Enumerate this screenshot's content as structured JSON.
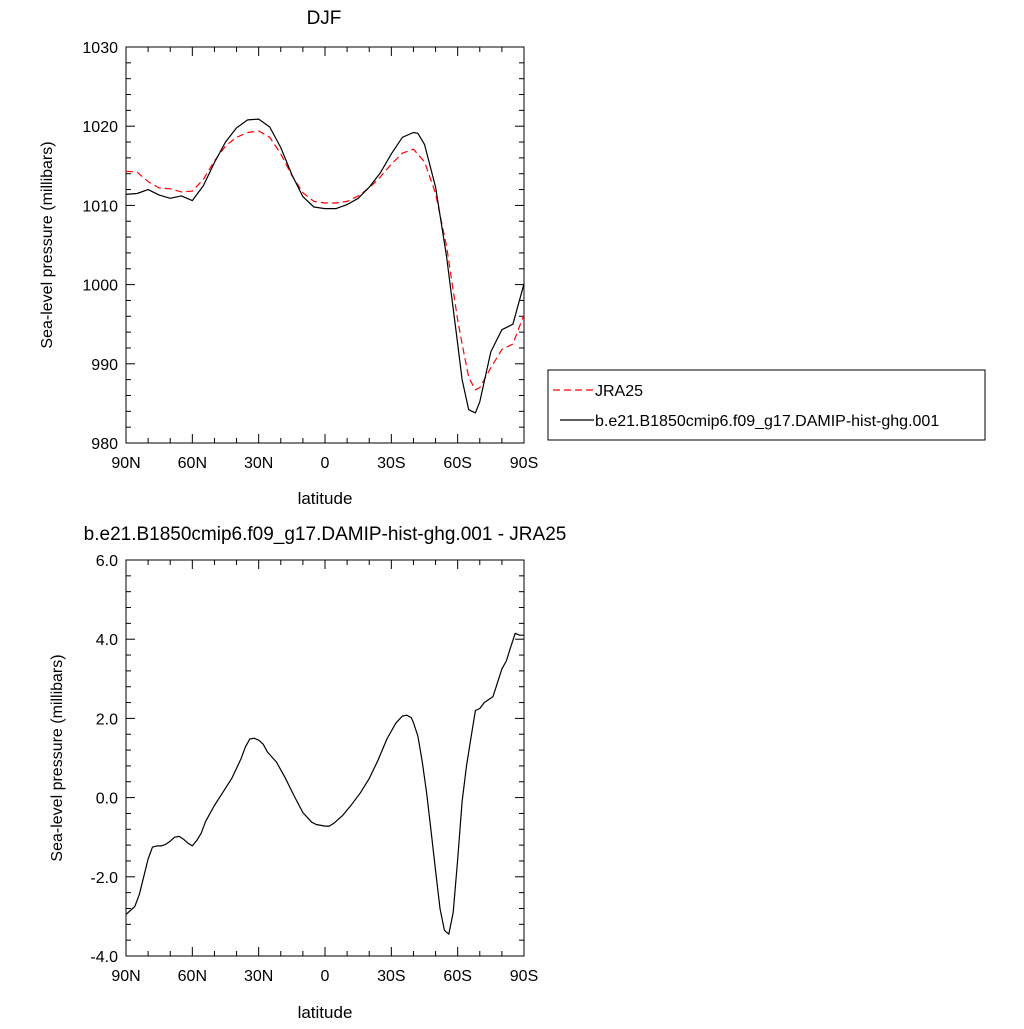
{
  "chart_data": [
    {
      "type": "line",
      "title": "DJF",
      "xlabel": "latitude",
      "ylabel": "Sea-level pressure (millibars)",
      "xlim": [
        90,
        -90
      ],
      "ylim": [
        980,
        1030
      ],
      "xticks": [
        {
          "value": 90,
          "label": "90N"
        },
        {
          "value": 60,
          "label": "60N"
        },
        {
          "value": 30,
          "label": "30N"
        },
        {
          "value": 0,
          "label": "0"
        },
        {
          "value": -30,
          "label": "30S"
        },
        {
          "value": -60,
          "label": "60S"
        },
        {
          "value": -90,
          "label": "90S"
        }
      ],
      "yticks": [
        {
          "value": 980,
          "label": "980"
        },
        {
          "value": 990,
          "label": "990"
        },
        {
          "value": 1000,
          "label": "1000"
        },
        {
          "value": 1010,
          "label": "1010"
        },
        {
          "value": 1020,
          "label": "1020"
        },
        {
          "value": 1030,
          "label": "1030"
        }
      ],
      "legend_position": "right",
      "series": [
        {
          "name": "JRA25",
          "color": "#ff0000",
          "dash": "dashed",
          "x": [
            90,
            85,
            80,
            75,
            70,
            65,
            60,
            55,
            50,
            45,
            40,
            35,
            30,
            25,
            20,
            15,
            10,
            5,
            0,
            -5,
            -10,
            -15,
            -20,
            -25,
            -30,
            -35,
            -40,
            -45,
            -50,
            -55,
            -60,
            -62,
            -65,
            -68,
            -70,
            -75,
            -80,
            -85,
            -90
          ],
          "y": [
            1014.3,
            1014.2,
            1013,
            1012.2,
            1012.1,
            1011.7,
            1011.8,
            1013.3,
            1015.6,
            1017.5,
            1018.6,
            1019.2,
            1019.4,
            1018.6,
            1016.5,
            1013.8,
            1011.6,
            1010.5,
            1010.3,
            1010.3,
            1010.5,
            1011.2,
            1012.2,
            1013.6,
            1015.2,
            1016.6,
            1017.1,
            1015.5,
            1011.5,
            1004.8,
            995.5,
            992.5,
            988.3,
            986.7,
            987,
            989.5,
            991.8,
            992.5,
            996.2
          ]
        },
        {
          "name": "b.e21.B1850cmip6.f09_g17.DAMIP-hist-ghg.001",
          "color": "#000000",
          "dash": "solid",
          "x": [
            90,
            85,
            80,
            75,
            70,
            65,
            60,
            55,
            50,
            45,
            40,
            35,
            30,
            25,
            20,
            15,
            10,
            5,
            0,
            -5,
            -10,
            -15,
            -20,
            -25,
            -30,
            -35,
            -40,
            -42,
            -45,
            -50,
            -55,
            -60,
            -62,
            -65,
            -68,
            -70,
            -75,
            -80,
            -85,
            -90
          ],
          "y": [
            1011.4,
            1011.5,
            1012,
            1011.3,
            1010.9,
            1011.2,
            1010.6,
            1012.5,
            1015.4,
            1018,
            1019.8,
            1020.8,
            1020.9,
            1019.9,
            1017.3,
            1013.9,
            1011.1,
            1009.8,
            1009.6,
            1009.6,
            1010.1,
            1010.9,
            1012.3,
            1014.1,
            1016.5,
            1018.6,
            1019.2,
            1019.1,
            1017.7,
            1012.3,
            1003.5,
            992.5,
            988,
            984.2,
            983.8,
            985.2,
            991.5,
            994.3,
            995,
            1000.1
          ]
        }
      ]
    },
    {
      "type": "line",
      "title": "b.e21.B1850cmip6.f09_g17.DAMIP-hist-ghg.001 - JRA25",
      "xlabel": "latitude",
      "ylabel": "Sea-level pressure (millibars)",
      "xlim": [
        90,
        -90
      ],
      "ylim": [
        -4,
        6
      ],
      "xticks": [
        {
          "value": 90,
          "label": "90N"
        },
        {
          "value": 60,
          "label": "60N"
        },
        {
          "value": 30,
          "label": "30N"
        },
        {
          "value": 0,
          "label": "0"
        },
        {
          "value": -30,
          "label": "30S"
        },
        {
          "value": -60,
          "label": "60S"
        },
        {
          "value": -90,
          "label": "90S"
        }
      ],
      "yticks": [
        {
          "value": -4,
          "label": "-4.0"
        },
        {
          "value": -2,
          "label": "-2.0"
        },
        {
          "value": 0,
          "label": "0.0"
        },
        {
          "value": 2,
          "label": "2.0"
        },
        {
          "value": 4,
          "label": "4.0"
        },
        {
          "value": 6,
          "label": "6.0"
        }
      ],
      "series": [
        {
          "color": "#000000",
          "dash": "solid",
          "x": [
            90,
            88,
            86,
            84,
            82,
            80,
            78,
            76,
            74,
            72,
            70,
            68,
            66,
            64,
            62,
            60,
            58,
            56,
            54,
            50,
            46,
            42,
            38,
            36,
            34,
            32,
            30,
            28,
            26,
            22,
            18,
            14,
            10,
            6,
            4,
            0,
            -2,
            -4,
            -8,
            -12,
            -16,
            -20,
            -24,
            -28,
            -32,
            -35,
            -37,
            -39,
            -40,
            -42,
            -44,
            -46,
            -48,
            -50,
            -52,
            -54,
            -56,
            -58,
            -60,
            -62,
            -64,
            -66,
            -68,
            -70,
            -72,
            -76,
            -80,
            -82,
            -84,
            -86,
            -88,
            -90
          ],
          "y": [
            -2.95,
            -2.85,
            -2.75,
            -2.45,
            -2.0,
            -1.55,
            -1.25,
            -1.22,
            -1.22,
            -1.18,
            -1.1,
            -1.0,
            -0.98,
            -1.05,
            -1.15,
            -1.22,
            -1.08,
            -0.9,
            -0.6,
            -0.2,
            0.15,
            0.5,
            0.98,
            1.28,
            1.48,
            1.5,
            1.45,
            1.35,
            1.15,
            0.9,
            0.5,
            0.05,
            -0.38,
            -0.62,
            -0.68,
            -0.72,
            -0.72,
            -0.65,
            -0.45,
            -0.18,
            0.12,
            0.48,
            0.95,
            1.48,
            1.88,
            2.06,
            2.08,
            2.02,
            1.9,
            1.55,
            0.9,
            0.1,
            -0.85,
            -1.85,
            -2.8,
            -3.35,
            -3.45,
            -2.9,
            -1.55,
            -0.1,
            0.8,
            1.5,
            2.2,
            2.25,
            2.4,
            2.55,
            3.25,
            3.45,
            3.8,
            4.15,
            4.1,
            4.1
          ]
        }
      ]
    }
  ]
}
